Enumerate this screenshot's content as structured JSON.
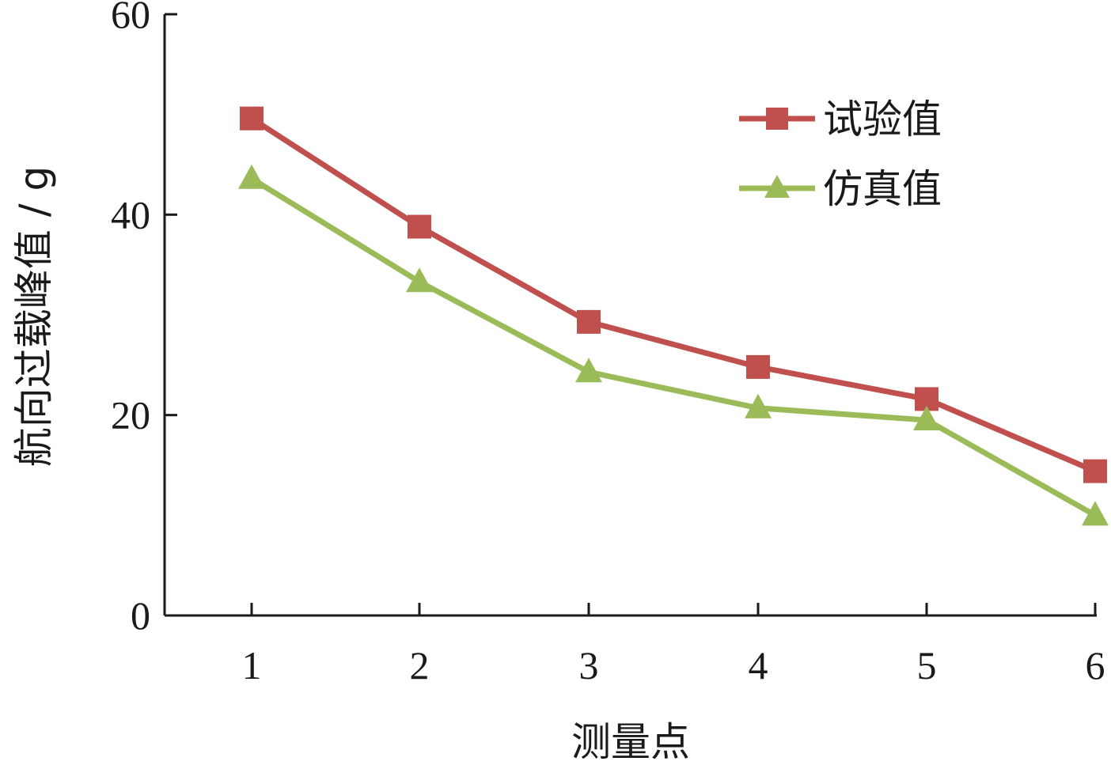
{
  "chart_data": {
    "type": "line",
    "title": "",
    "xlabel": "测量点",
    "ylabel": "航向过载峰值 / g",
    "categories": [
      "1",
      "2",
      "3",
      "4",
      "5",
      "6"
    ],
    "ylim": [
      0,
      60
    ],
    "yticks": [
      0,
      20,
      40,
      60
    ],
    "grid": false,
    "legend_position": "top-right",
    "series": [
      {
        "name": "试验值",
        "marker": "square",
        "color": "#c0504d",
        "values": [
          49.6,
          38.8,
          29.3,
          24.8,
          21.6,
          14.4
        ]
      },
      {
        "name": "仿真值",
        "marker": "triangle",
        "color": "#9bbb59",
        "values": [
          43.6,
          33.3,
          24.3,
          20.7,
          19.5,
          10.0
        ]
      }
    ]
  }
}
